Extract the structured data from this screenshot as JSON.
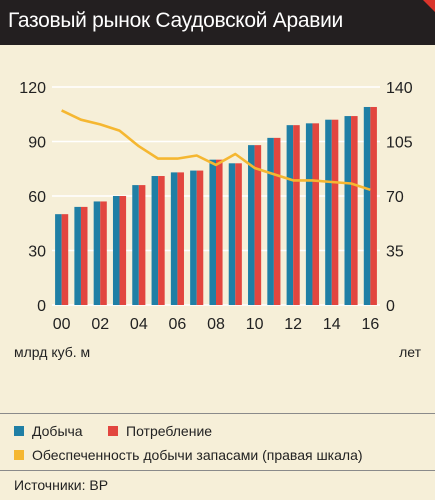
{
  "header": {
    "title": "Газовый рынок Саудовской Аравии"
  },
  "units": {
    "left": "млрд куб. м",
    "right": "лет"
  },
  "legend": {
    "production": "Добыча",
    "consumption": "Потребление",
    "reserves": "Обеспеченность добычи запасами (правая шкала)"
  },
  "source": "Источники: BP",
  "colors": {
    "production": "#1f7fa5",
    "consumption": "#e2463f",
    "reserves": "#f5b731",
    "grid": "#ffffff"
  },
  "chart_data": {
    "type": "bar",
    "x": [
      "2000",
      "2001",
      "2002",
      "2003",
      "2004",
      "2005",
      "2006",
      "2007",
      "2008",
      "2009",
      "2010",
      "2011",
      "2012",
      "2013",
      "2014",
      "2015",
      "2016"
    ],
    "x_tick_labels": [
      "00",
      "",
      "02",
      "",
      "04",
      "",
      "06",
      "",
      "08",
      "",
      "10",
      "",
      "12",
      "",
      "14",
      "",
      "16"
    ],
    "ylim_left": [
      0,
      120
    ],
    "yticks_left": [
      0,
      30,
      60,
      90,
      120
    ],
    "ylim_right": [
      0,
      140
    ],
    "yticks_right": [
      0,
      35,
      70,
      105,
      140
    ],
    "grid": true,
    "series": [
      {
        "name": "Добыча",
        "type": "bar",
        "axis": "left",
        "values": [
          50,
          54,
          57,
          60,
          66,
          71,
          73,
          74,
          80,
          78,
          88,
          92,
          99,
          100,
          102,
          104,
          109
        ]
      },
      {
        "name": "Потребление",
        "type": "bar",
        "axis": "left",
        "values": [
          50,
          54,
          57,
          60,
          66,
          71,
          73,
          74,
          80,
          78,
          88,
          92,
          99,
          100,
          102,
          104,
          109
        ]
      },
      {
        "name": "Обеспеченность добычи запасами (правая шкала)",
        "type": "line",
        "axis": "right",
        "values": [
          125,
          119,
          116,
          112,
          102,
          94,
          94,
          96,
          90,
          97,
          88,
          84,
          80,
          80,
          79,
          78,
          74
        ]
      }
    ]
  }
}
